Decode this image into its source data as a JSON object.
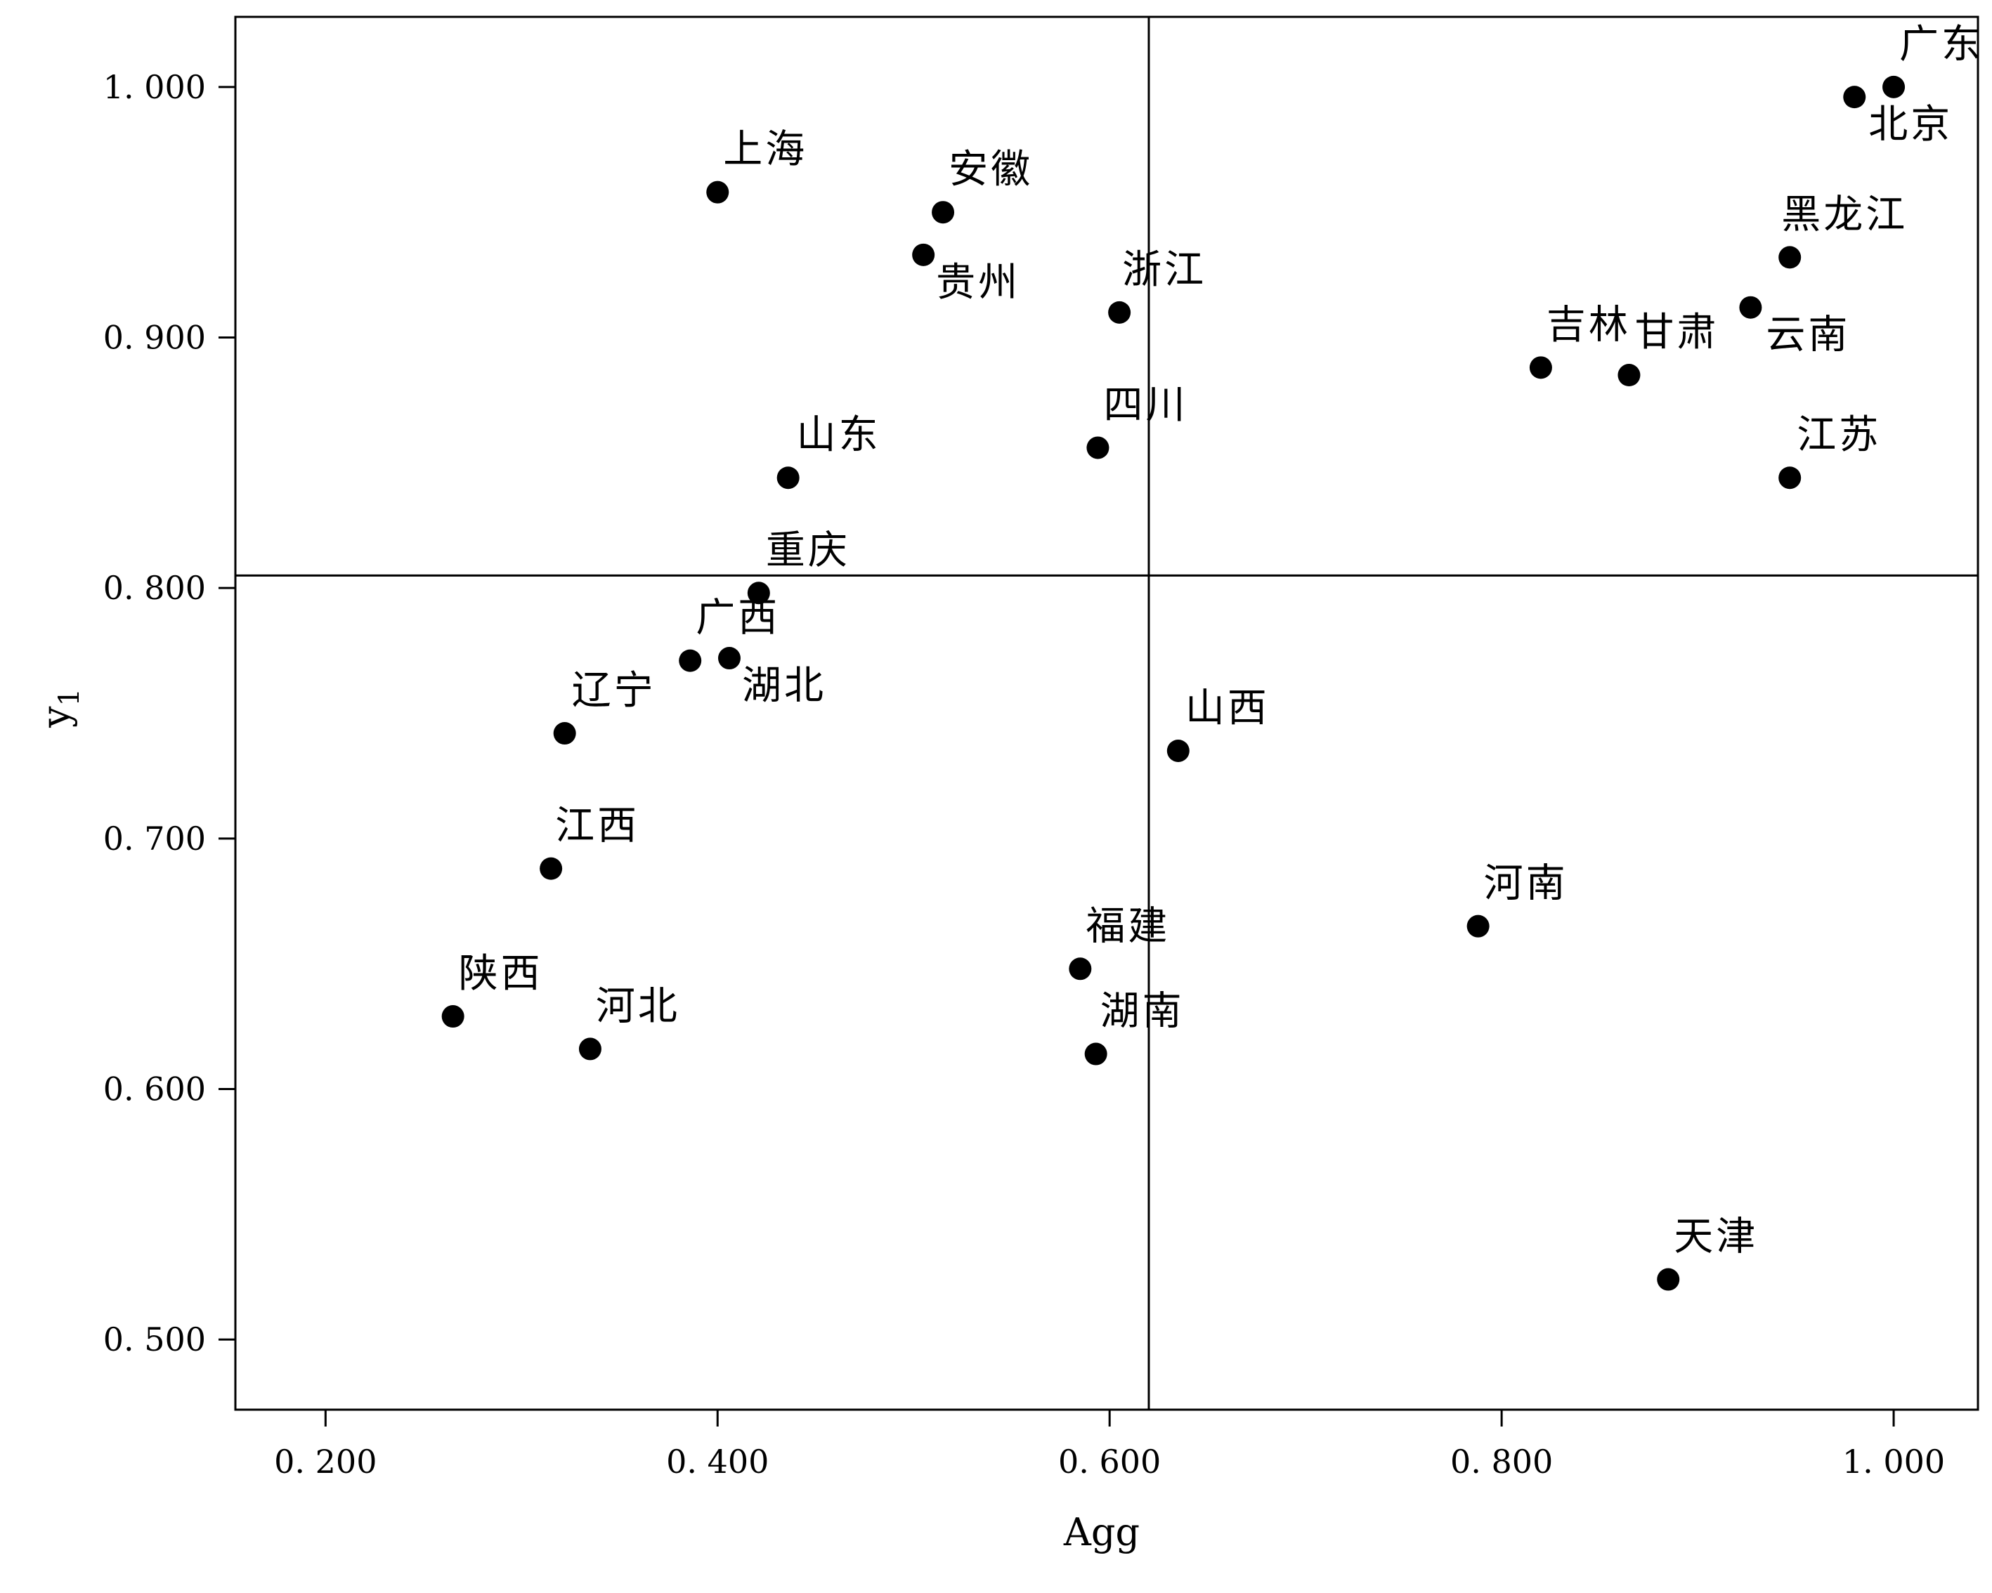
{
  "chart_data": {
    "type": "scatter",
    "xlabel": "Agg",
    "ylabel": "y",
    "ylabel_sub": "1",
    "xlim": [
      0.154,
      1.043
    ],
    "ylim": [
      0.472,
      1.028
    ],
    "x_ticks": [
      {
        "value": 0.2,
        "label": "0. 200"
      },
      {
        "value": 0.4,
        "label": "0. 400"
      },
      {
        "value": 0.6,
        "label": "0. 600"
      },
      {
        "value": 0.8,
        "label": "0. 800"
      },
      {
        "value": 1.0,
        "label": "1. 000"
      }
    ],
    "y_ticks": [
      {
        "value": 0.5,
        "label": "0. 500"
      },
      {
        "value": 0.6,
        "label": "0. 600"
      },
      {
        "value": 0.7,
        "label": "0. 700"
      },
      {
        "value": 0.8,
        "label": "0. 800"
      },
      {
        "value": 0.9,
        "label": "0. 900"
      },
      {
        "value": 1.0,
        "label": "1. 000"
      }
    ],
    "reference_lines": {
      "x": 0.62,
      "y": 0.805
    },
    "grid": false,
    "point_color": "#000000",
    "points": [
      {
        "label": "广东",
        "x": 1.0,
        "y": 1.0
      },
      {
        "label": "北京",
        "x": 0.98,
        "y": 0.996
      },
      {
        "label": "上海",
        "x": 0.4,
        "y": 0.958
      },
      {
        "label": "安徽",
        "x": 0.515,
        "y": 0.95
      },
      {
        "label": "贵州",
        "x": 0.505,
        "y": 0.933
      },
      {
        "label": "黑龙江",
        "x": 0.947,
        "y": 0.932
      },
      {
        "label": "浙江",
        "x": 0.605,
        "y": 0.91
      },
      {
        "label": "云南",
        "x": 0.927,
        "y": 0.912
      },
      {
        "label": "吉林",
        "x": 0.82,
        "y": 0.888
      },
      {
        "label": "甘肃",
        "x": 0.865,
        "y": 0.885
      },
      {
        "label": "四川",
        "x": 0.594,
        "y": 0.856
      },
      {
        "label": "山东",
        "x": 0.436,
        "y": 0.844
      },
      {
        "label": "江苏",
        "x": 0.947,
        "y": 0.844
      },
      {
        "label": "重庆",
        "x": 0.421,
        "y": 0.798
      },
      {
        "label": "广西",
        "x": 0.386,
        "y": 0.771
      },
      {
        "label": "湖北",
        "x": 0.406,
        "y": 0.772
      },
      {
        "label": "辽宁",
        "x": 0.322,
        "y": 0.742
      },
      {
        "label": "山西",
        "x": 0.635,
        "y": 0.735
      },
      {
        "label": "江西",
        "x": 0.315,
        "y": 0.688
      },
      {
        "label": "河南",
        "x": 0.788,
        "y": 0.665
      },
      {
        "label": "福建",
        "x": 0.585,
        "y": 0.648
      },
      {
        "label": "陕西",
        "x": 0.265,
        "y": 0.629
      },
      {
        "label": "河北",
        "x": 0.335,
        "y": 0.616
      },
      {
        "label": "湖南",
        "x": 0.593,
        "y": 0.614
      },
      {
        "label": "天津",
        "x": 0.885,
        "y": 0.524
      }
    ]
  }
}
